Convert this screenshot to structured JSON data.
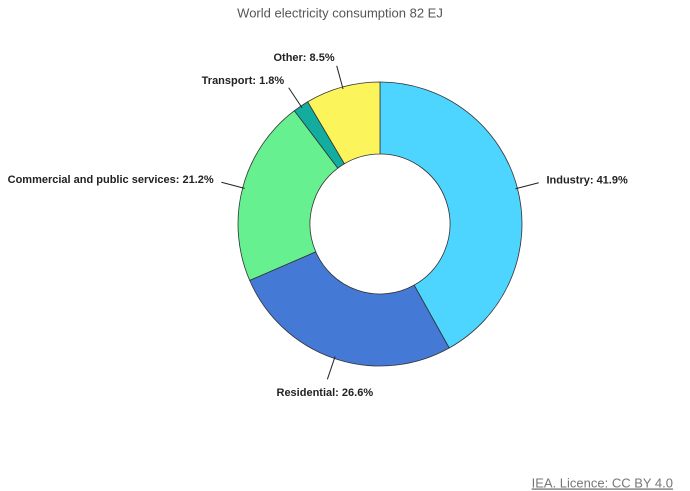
{
  "chart_data": {
    "type": "pie",
    "title": "World electricity consumption 82 EJ",
    "values": [
      41.9,
      26.6,
      21.2,
      1.8,
      8.5
    ],
    "value_labels": [
      "Industry: 41.9%",
      "Residential: 26.6%",
      "Commercial and public services: 21.2%",
      "Transport: 1.8%",
      "Other: 8.5%"
    ],
    "colors": [
      "#4dd4ff",
      "#4479d6",
      "#66f08f",
      "#13ad9f",
      "#fbf45a"
    ],
    "donut": true
  },
  "footer": {
    "source": "IEA. Licence: CC BY 4.0"
  }
}
